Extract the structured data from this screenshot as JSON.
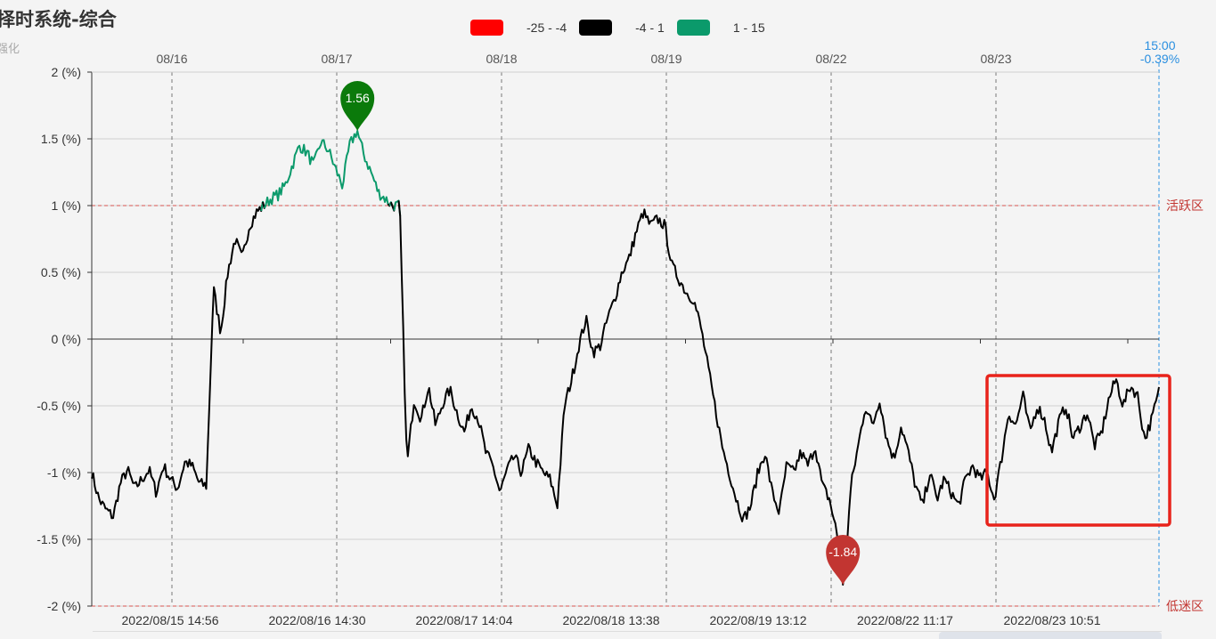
{
  "title": "择时系统-综合",
  "subtitle": "强化",
  "legend": [
    {
      "label": "-25 - -4",
      "color": "#ff0000"
    },
    {
      "label": "-4 - 1",
      "color": "#000000"
    },
    {
      "label": "1 - 15",
      "color": "#0b9a6b"
    }
  ],
  "chart_data": {
    "type": "line",
    "title": "择时系统-综合",
    "y_ticks": [
      "2 (%)",
      "1.5 (%)",
      "1 (%)",
      "0.5 (%)",
      "0 (%)",
      "-0.5 (%)",
      "-1 (%)",
      "-1.5 (%)",
      "-2 (%)"
    ],
    "ylim": [
      -2,
      2
    ],
    "top_ticks": [
      "08/16",
      "08/17",
      "08/18",
      "08/19",
      "08/22",
      "08/23"
    ],
    "bottom_ticks": [
      "2022/08/15 14:56",
      "2022/08/16 14:30",
      "2022/08/17 14:04",
      "2022/08/18 13:38",
      "2022/08/19 13:12",
      "2022/08/22 11:17",
      "2022/08/23 10:51"
    ],
    "cursor": {
      "time": "15:00",
      "value": "-0.39%"
    },
    "mark_lines": [
      {
        "label": "活跃区",
        "value": 1.0
      },
      {
        "label": "低迷区",
        "value": -2.0
      }
    ],
    "mark_points": [
      {
        "label": "1.56",
        "value": 1.56,
        "type": "max",
        "color": "#0b7a0b"
      },
      {
        "label": "-1.84",
        "value": -1.84,
        "type": "min",
        "color": "#c23531"
      }
    ],
    "pieces": [
      {
        "range": [
          -25,
          -4
        ],
        "color": "#ff0000"
      },
      {
        "range": [
          -4,
          1
        ],
        "color": "#000000"
      },
      {
        "range": [
          1,
          15
        ],
        "color": "#0b9a6b"
      }
    ],
    "x_count": 700,
    "series": [
      {
        "values": [
          -1.0,
          -1.2,
          -1.28,
          -1.33,
          -1.08,
          -0.98,
          -1.12,
          -1.05,
          -0.98,
          -1.15,
          -0.95,
          -1.05,
          -1.12,
          -0.92,
          -0.95,
          -1.08,
          -1.1,
          0.38,
          0.05,
          0.5,
          0.75,
          0.6,
          0.85,
          0.95,
          1.0,
          1.05,
          1.08,
          1.15,
          1.3,
          1.45,
          1.4,
          1.3,
          1.48,
          1.42,
          1.28,
          1.15,
          1.45,
          1.56,
          1.38,
          1.25,
          1.1,
          1.05,
          1.0,
          1.0,
          -0.95,
          -0.45,
          -0.6,
          -0.35,
          -0.65,
          -0.48,
          -0.38,
          -0.55,
          -0.7,
          -0.5,
          -0.6,
          -0.85,
          -0.95,
          -1.15,
          -0.98,
          -0.88,
          -1.0,
          -0.82,
          -0.92,
          -1.0,
          -1.05,
          -1.25,
          -0.5,
          -0.3,
          -0.05,
          0.15,
          -0.1,
          -0.05,
          0.15,
          0.3,
          0.5,
          0.6,
          0.8,
          0.95,
          0.85,
          0.9,
          0.85,
          0.55,
          0.45,
          0.35,
          0.3,
          0.1,
          -0.2,
          -0.5,
          -0.8,
          -1.0,
          -1.2,
          -1.35,
          -1.25,
          -1.0,
          -0.85,
          -1.15,
          -1.3,
          -0.95,
          -1.0,
          -0.85,
          -0.95,
          -0.8,
          -1.1,
          -1.2,
          -1.45,
          -1.84,
          -1.1,
          -0.8,
          -0.5,
          -0.65,
          -0.45,
          -0.75,
          -0.9,
          -0.65,
          -0.85,
          -1.1,
          -1.25,
          -1.0,
          -1.2,
          -1.05,
          -1.15,
          -1.25,
          -1.05,
          -0.95,
          -1.05,
          -1.0,
          -1.2,
          -0.9,
          -0.55,
          -0.65,
          -0.42,
          -0.7,
          -0.5,
          -0.6,
          -0.85,
          -0.62,
          -0.5,
          -0.75,
          -0.65,
          -0.55,
          -0.8,
          -0.7,
          -0.45,
          -0.3,
          -0.5,
          -0.35,
          -0.42,
          -0.75,
          -0.6,
          -0.39
        ]
      }
    ]
  }
}
